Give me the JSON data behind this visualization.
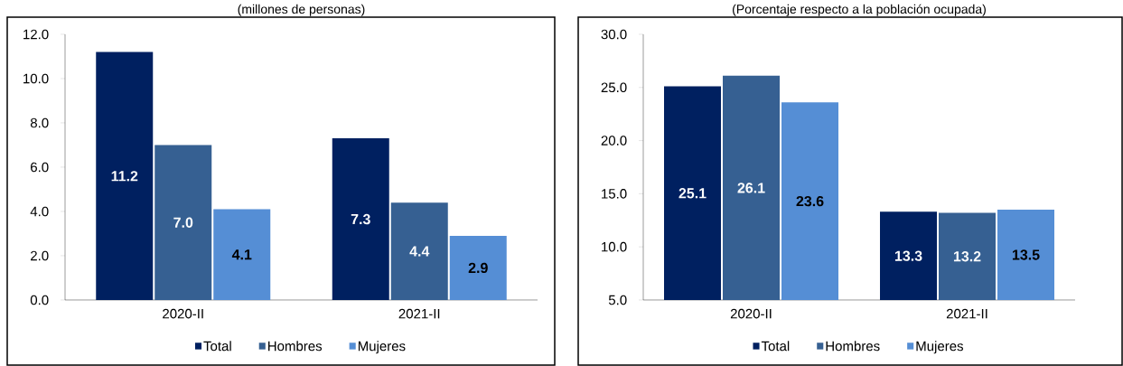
{
  "chart_data": [
    {
      "type": "bar",
      "subtitle": "(millones de personas)",
      "categories": [
        "2020-II",
        "2021-II"
      ],
      "series": [
        {
          "name": "Total",
          "color": "#002060",
          "values": [
            11.2,
            7.3
          ],
          "value_labels": [
            "11.2",
            "7.3"
          ]
        },
        {
          "name": "Hombres",
          "color": "#366092",
          "values": [
            7.0,
            4.4
          ],
          "value_labels": [
            "7.0",
            "4.4"
          ]
        },
        {
          "name": "Mujeres",
          "color": "#558ED5",
          "values": [
            4.1,
            2.9
          ],
          "value_labels": [
            "4.1",
            "2.9"
          ]
        }
      ],
      "ylim": [
        0,
        12
      ],
      "yticks": [
        {
          "value": 0,
          "label": "0.0"
        },
        {
          "value": 2,
          "label": "2.0"
        },
        {
          "value": 4,
          "label": "4.0"
        },
        {
          "value": 6,
          "label": "6.0"
        },
        {
          "value": 8,
          "label": "8.0"
        },
        {
          "value": 10,
          "label": "10.0"
        },
        {
          "value": 12,
          "label": "12.0"
        }
      ],
      "legend": "bottom"
    },
    {
      "type": "bar",
      "subtitle": "(Porcentaje respecto a la población ocupada)",
      "categories": [
        "2020-II",
        "2021-II"
      ],
      "series": [
        {
          "name": "Total",
          "color": "#002060",
          "values": [
            25.1,
            13.3
          ],
          "value_labels": [
            "25.1",
            "13.3"
          ]
        },
        {
          "name": "Hombres",
          "color": "#366092",
          "values": [
            26.1,
            13.2
          ],
          "value_labels": [
            "26.1",
            "13.2"
          ]
        },
        {
          "name": "Mujeres",
          "color": "#558ED5",
          "values": [
            23.6,
            13.5
          ],
          "value_labels": [
            "23.6",
            "13.5"
          ]
        }
      ],
      "ylim": [
        5,
        30
      ],
      "yticks": [
        {
          "value": 5,
          "label": "5.0"
        },
        {
          "value": 10,
          "label": "10.0"
        },
        {
          "value": 15,
          "label": "15.0"
        },
        {
          "value": 20,
          "label": "20.0"
        },
        {
          "value": 25,
          "label": "25.0"
        },
        {
          "value": 30,
          "label": "30.0"
        }
      ],
      "legend": "bottom"
    }
  ]
}
